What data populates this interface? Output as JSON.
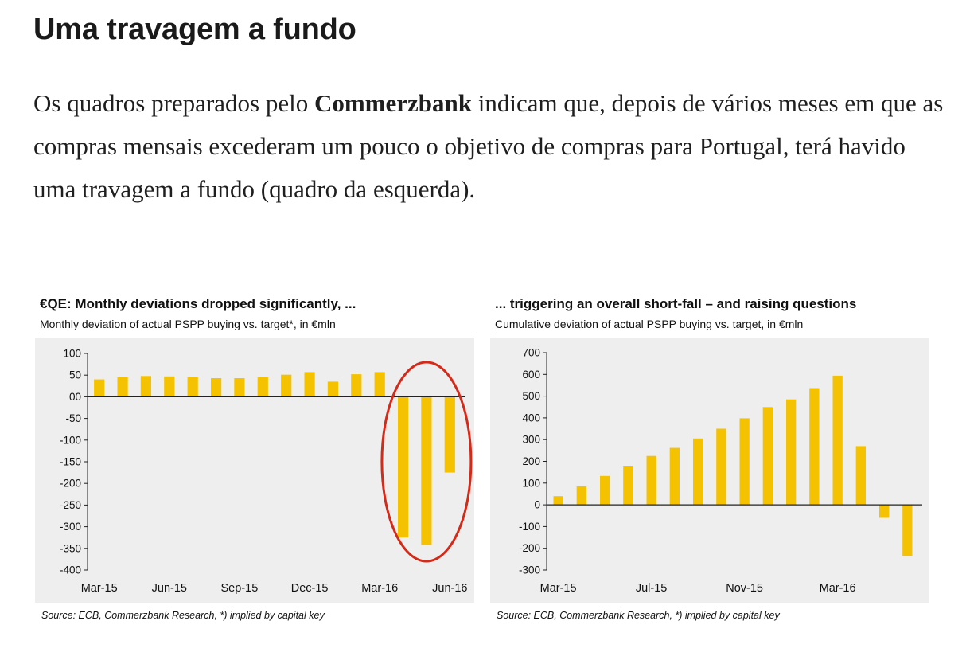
{
  "article": {
    "heading": "Uma travagem a fundo",
    "para_before": "Os quadros preparados pelo ",
    "para_bold": "Commerzbank",
    "para_after": " indicam que, depois de vários meses em que as compras mensais excederam um pouco o objetivo de compras para Portugal, terá havido uma travagem a fundo (quadro da esquerda)."
  },
  "colors": {
    "bar": "#f5c200",
    "highlight_ellipse": "#d42a1a",
    "plot_background": "#eeeeee"
  },
  "chart_data": [
    {
      "type": "bar",
      "title": "€QE: Monthly deviations dropped significantly, ...",
      "subtitle": "Monthly deviation of actual PSPP buying vs. target*, in €mln",
      "source": "Source: ECB, Commerzbank Research, *) implied by capital key",
      "xlabel": "",
      "ylabel": "",
      "categories": [
        "Mar-15",
        "Apr-15",
        "May-15",
        "Jun-15",
        "Jul-15",
        "Aug-15",
        "Sep-15",
        "Oct-15",
        "Nov-15",
        "Dec-15",
        "Jan-16",
        "Feb-16",
        "Mar-16",
        "Apr-16",
        "May-16",
        "Jun-16"
      ],
      "values": [
        40,
        45,
        48,
        47,
        45,
        43,
        43,
        45,
        51,
        57,
        35,
        52,
        57,
        -325,
        -342,
        -175
      ],
      "x_tick_labels": [
        "Mar-15",
        "Jun-15",
        "Sep-15",
        "Dec-15",
        "Mar-16",
        "Jun-16"
      ],
      "y_tick_labels": [
        "100",
        "50",
        "00",
        "-50",
        "-100",
        "-150",
        "-200",
        "-250",
        "-300",
        "-350",
        "-400"
      ],
      "ylim": [
        -400,
        100
      ],
      "grid": false,
      "highlight": "red ellipse around last three bars"
    },
    {
      "type": "bar",
      "title": "... triggering an overall short-fall – and raising questions",
      "subtitle": "Cumulative deviation of actual PSPP buying vs. target, in €mln",
      "source": "Source: ECB, Commerzbank Research, *) implied by capital key",
      "xlabel": "",
      "ylabel": "",
      "categories": [
        "Mar-15",
        "Apr-15",
        "May-15",
        "Jun-15",
        "Jul-15",
        "Aug-15",
        "Sep-15",
        "Oct-15",
        "Nov-15",
        "Dec-15",
        "Jan-16",
        "Feb-16",
        "Mar-16",
        "Apr-16",
        "May-16",
        "Jun-16"
      ],
      "values": [
        40,
        85,
        133,
        180,
        225,
        262,
        305,
        350,
        398,
        450,
        485,
        537,
        594,
        270,
        -60,
        -235
      ],
      "x_tick_labels": [
        "Mar-15",
        "Jul-15",
        "Nov-15",
        "Mar-16"
      ],
      "y_tick_labels": [
        "700",
        "600",
        "500",
        "400",
        "300",
        "200",
        "100",
        "0",
        "-100",
        "-200",
        "-300"
      ],
      "ylim": [
        -300,
        700
      ],
      "grid": false
    }
  ]
}
